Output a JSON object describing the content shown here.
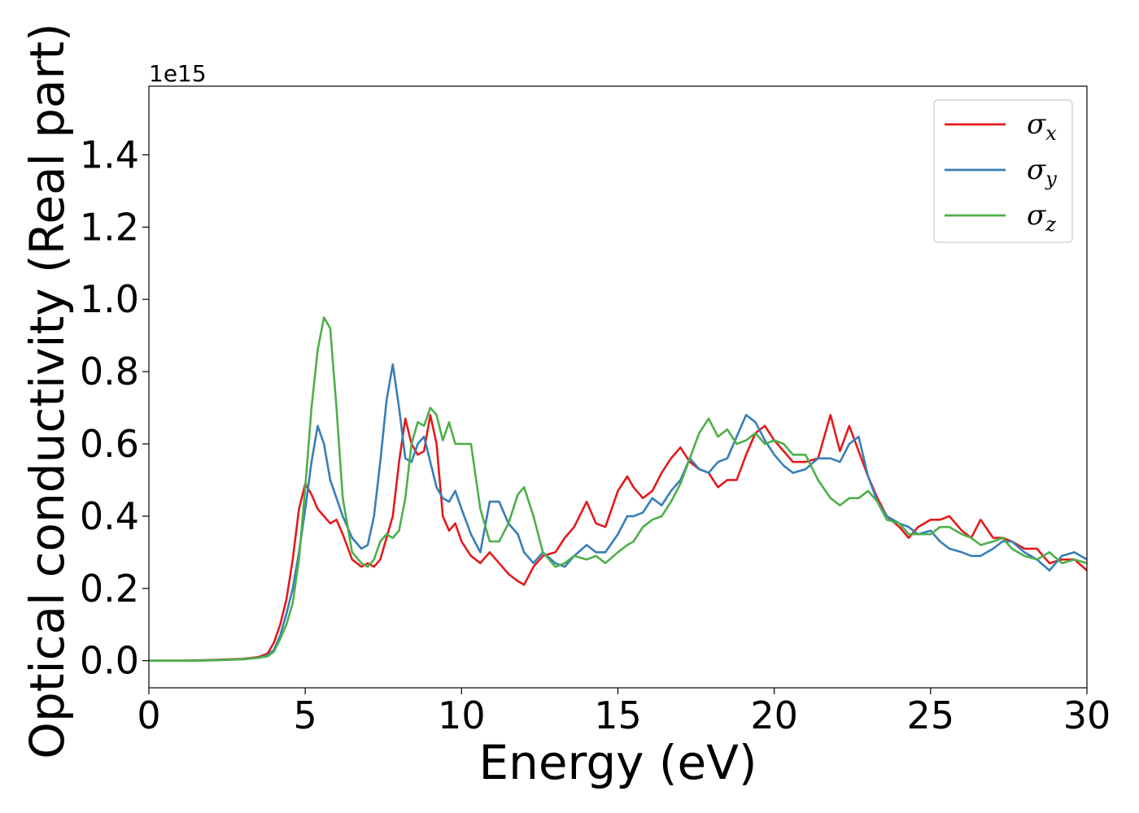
{
  "chart_data": {
    "type": "line",
    "xlabel": "Energy (eV)",
    "ylabel": "Optical conductivity (Real part)",
    "y_offset_label": "1e15",
    "xlim": [
      0,
      30
    ],
    "ylim": [
      -0.075,
      1.59
    ],
    "xticks": [
      0,
      5,
      10,
      15,
      20,
      25,
      30
    ],
    "xtick_labels": [
      "0",
      "5",
      "10",
      "15",
      "20",
      "25",
      "30"
    ],
    "yticks": [
      0.0,
      0.2,
      0.4,
      0.6,
      0.8,
      1.0,
      1.2,
      1.4
    ],
    "ytick_labels": [
      "0.0",
      "0.2",
      "0.4",
      "0.6",
      "0.8",
      "1.0",
      "1.2",
      "1.4"
    ],
    "grid": false,
    "legend_position": "top-right",
    "series": [
      {
        "name": "σx",
        "label_base": "σ",
        "label_sub": "x",
        "color": "#e41a1c",
        "x": [
          0,
          1,
          2,
          3,
          3.5,
          3.8,
          4.0,
          4.2,
          4.4,
          4.6,
          4.8,
          5.0,
          5.2,
          5.4,
          5.6,
          5.8,
          6.0,
          6.2,
          6.5,
          6.8,
          7.0,
          7.2,
          7.4,
          7.6,
          7.8,
          8.0,
          8.2,
          8.4,
          8.6,
          8.8,
          9.0,
          9.2,
          9.4,
          9.6,
          9.8,
          10.0,
          10.3,
          10.6,
          10.9,
          11.2,
          11.5,
          11.8,
          12.0,
          12.3,
          12.6,
          13.0,
          13.3,
          13.6,
          14.0,
          14.3,
          14.6,
          15.0,
          15.3,
          15.5,
          15.8,
          16.1,
          16.4,
          16.7,
          17.0,
          17.3,
          17.6,
          17.9,
          18.2,
          18.5,
          18.8,
          19.1,
          19.4,
          19.7,
          20.0,
          20.3,
          20.6,
          21.0,
          21.4,
          21.8,
          22.1,
          22.4,
          22.7,
          23.0,
          23.3,
          23.6,
          24.0,
          24.3,
          24.6,
          25.0,
          25.3,
          25.6,
          26.0,
          26.3,
          26.6,
          27.0,
          27.3,
          27.6,
          28.0,
          28.4,
          28.8,
          29.2,
          29.6,
          30.0
        ],
        "y": [
          0.0,
          0.0,
          0.002,
          0.005,
          0.01,
          0.02,
          0.05,
          0.1,
          0.17,
          0.28,
          0.42,
          0.49,
          0.46,
          0.42,
          0.4,
          0.38,
          0.39,
          0.35,
          0.28,
          0.26,
          0.27,
          0.26,
          0.28,
          0.34,
          0.4,
          0.55,
          0.67,
          0.6,
          0.57,
          0.58,
          0.68,
          0.6,
          0.4,
          0.36,
          0.38,
          0.33,
          0.29,
          0.27,
          0.3,
          0.27,
          0.24,
          0.22,
          0.21,
          0.26,
          0.29,
          0.3,
          0.34,
          0.37,
          0.44,
          0.38,
          0.37,
          0.47,
          0.51,
          0.48,
          0.45,
          0.47,
          0.52,
          0.56,
          0.59,
          0.55,
          0.53,
          0.52,
          0.48,
          0.5,
          0.5,
          0.57,
          0.63,
          0.65,
          0.61,
          0.58,
          0.55,
          0.55,
          0.56,
          0.68,
          0.58,
          0.65,
          0.58,
          0.51,
          0.45,
          0.4,
          0.37,
          0.34,
          0.37,
          0.39,
          0.39,
          0.4,
          0.36,
          0.34,
          0.39,
          0.34,
          0.34,
          0.33,
          0.31,
          0.31,
          0.27,
          0.28,
          0.28,
          0.25
        ]
      },
      {
        "name": "σy",
        "label_base": "σ",
        "label_sub": "y",
        "color": "#377eb8",
        "x": [
          0,
          1,
          2,
          3,
          3.5,
          3.8,
          4.0,
          4.2,
          4.4,
          4.6,
          4.8,
          5.0,
          5.2,
          5.4,
          5.6,
          5.8,
          6.0,
          6.2,
          6.5,
          6.8,
          7.0,
          7.2,
          7.4,
          7.6,
          7.8,
          8.0,
          8.2,
          8.4,
          8.6,
          8.8,
          9.0,
          9.2,
          9.4,
          9.6,
          9.8,
          10.0,
          10.3,
          10.6,
          10.9,
          11.2,
          11.5,
          11.8,
          12.0,
          12.3,
          12.6,
          13.0,
          13.3,
          13.6,
          14.0,
          14.3,
          14.6,
          15.0,
          15.3,
          15.5,
          15.8,
          16.1,
          16.4,
          16.7,
          17.0,
          17.3,
          17.6,
          17.9,
          18.2,
          18.5,
          18.8,
          19.1,
          19.4,
          19.7,
          20.0,
          20.3,
          20.6,
          21.0,
          21.4,
          21.8,
          22.1,
          22.4,
          22.7,
          23.0,
          23.3,
          23.6,
          24.0,
          24.3,
          24.6,
          25.0,
          25.3,
          25.6,
          26.0,
          26.3,
          26.6,
          27.0,
          27.3,
          27.6,
          28.0,
          28.4,
          28.8,
          29.2,
          29.6,
          30.0
        ],
        "y": [
          0.0,
          0.0,
          0.001,
          0.004,
          0.008,
          0.015,
          0.03,
          0.07,
          0.13,
          0.2,
          0.3,
          0.42,
          0.55,
          0.65,
          0.6,
          0.5,
          0.45,
          0.4,
          0.34,
          0.31,
          0.32,
          0.4,
          0.55,
          0.72,
          0.82,
          0.7,
          0.56,
          0.55,
          0.6,
          0.62,
          0.55,
          0.48,
          0.45,
          0.44,
          0.47,
          0.42,
          0.35,
          0.3,
          0.44,
          0.44,
          0.38,
          0.35,
          0.3,
          0.27,
          0.3,
          0.27,
          0.26,
          0.29,
          0.32,
          0.3,
          0.3,
          0.35,
          0.4,
          0.4,
          0.41,
          0.45,
          0.43,
          0.47,
          0.5,
          0.56,
          0.53,
          0.52,
          0.55,
          0.56,
          0.62,
          0.68,
          0.66,
          0.61,
          0.57,
          0.54,
          0.52,
          0.53,
          0.56,
          0.56,
          0.55,
          0.6,
          0.62,
          0.51,
          0.44,
          0.4,
          0.38,
          0.37,
          0.35,
          0.36,
          0.33,
          0.31,
          0.3,
          0.29,
          0.29,
          0.31,
          0.33,
          0.33,
          0.3,
          0.28,
          0.25,
          0.29,
          0.3,
          0.28
        ]
      },
      {
        "name": "σz",
        "label_base": "σ",
        "label_sub": "z",
        "color": "#4daf4a",
        "x": [
          0,
          1,
          2,
          3,
          3.5,
          3.8,
          4.0,
          4.2,
          4.4,
          4.6,
          4.8,
          5.0,
          5.2,
          5.4,
          5.6,
          5.8,
          6.0,
          6.2,
          6.5,
          6.8,
          7.0,
          7.2,
          7.4,
          7.6,
          7.8,
          8.0,
          8.2,
          8.4,
          8.6,
          8.8,
          9.0,
          9.2,
          9.4,
          9.6,
          9.8,
          10.0,
          10.3,
          10.6,
          10.9,
          11.2,
          11.5,
          11.8,
          12.0,
          12.3,
          12.6,
          13.0,
          13.3,
          13.6,
          14.0,
          14.3,
          14.6,
          15.0,
          15.3,
          15.5,
          15.8,
          16.1,
          16.4,
          16.7,
          17.0,
          17.3,
          17.6,
          17.9,
          18.2,
          18.5,
          18.8,
          19.1,
          19.4,
          19.7,
          20.0,
          20.3,
          20.6,
          21.0,
          21.4,
          21.8,
          22.1,
          22.4,
          22.7,
          23.0,
          23.3,
          23.6,
          24.0,
          24.3,
          24.6,
          25.0,
          25.3,
          25.6,
          26.0,
          26.3,
          26.6,
          27.0,
          27.3,
          27.6,
          28.0,
          28.4,
          28.8,
          29.2,
          29.6,
          30.0
        ],
        "y": [
          0.0,
          0.0,
          0.001,
          0.004,
          0.008,
          0.012,
          0.025,
          0.06,
          0.1,
          0.16,
          0.28,
          0.48,
          0.7,
          0.86,
          0.95,
          0.92,
          0.7,
          0.45,
          0.3,
          0.27,
          0.26,
          0.28,
          0.33,
          0.35,
          0.34,
          0.36,
          0.45,
          0.6,
          0.66,
          0.65,
          0.7,
          0.68,
          0.61,
          0.66,
          0.6,
          0.6,
          0.6,
          0.42,
          0.33,
          0.33,
          0.38,
          0.46,
          0.48,
          0.4,
          0.3,
          0.26,
          0.27,
          0.29,
          0.28,
          0.29,
          0.27,
          0.3,
          0.32,
          0.33,
          0.37,
          0.39,
          0.4,
          0.44,
          0.49,
          0.56,
          0.63,
          0.67,
          0.62,
          0.64,
          0.6,
          0.61,
          0.63,
          0.6,
          0.61,
          0.6,
          0.57,
          0.57,
          0.5,
          0.45,
          0.43,
          0.45,
          0.45,
          0.47,
          0.44,
          0.39,
          0.38,
          0.35,
          0.35,
          0.35,
          0.37,
          0.37,
          0.35,
          0.34,
          0.32,
          0.33,
          0.34,
          0.31,
          0.29,
          0.28,
          0.3,
          0.27,
          0.28,
          0.27
        ]
      }
    ]
  }
}
